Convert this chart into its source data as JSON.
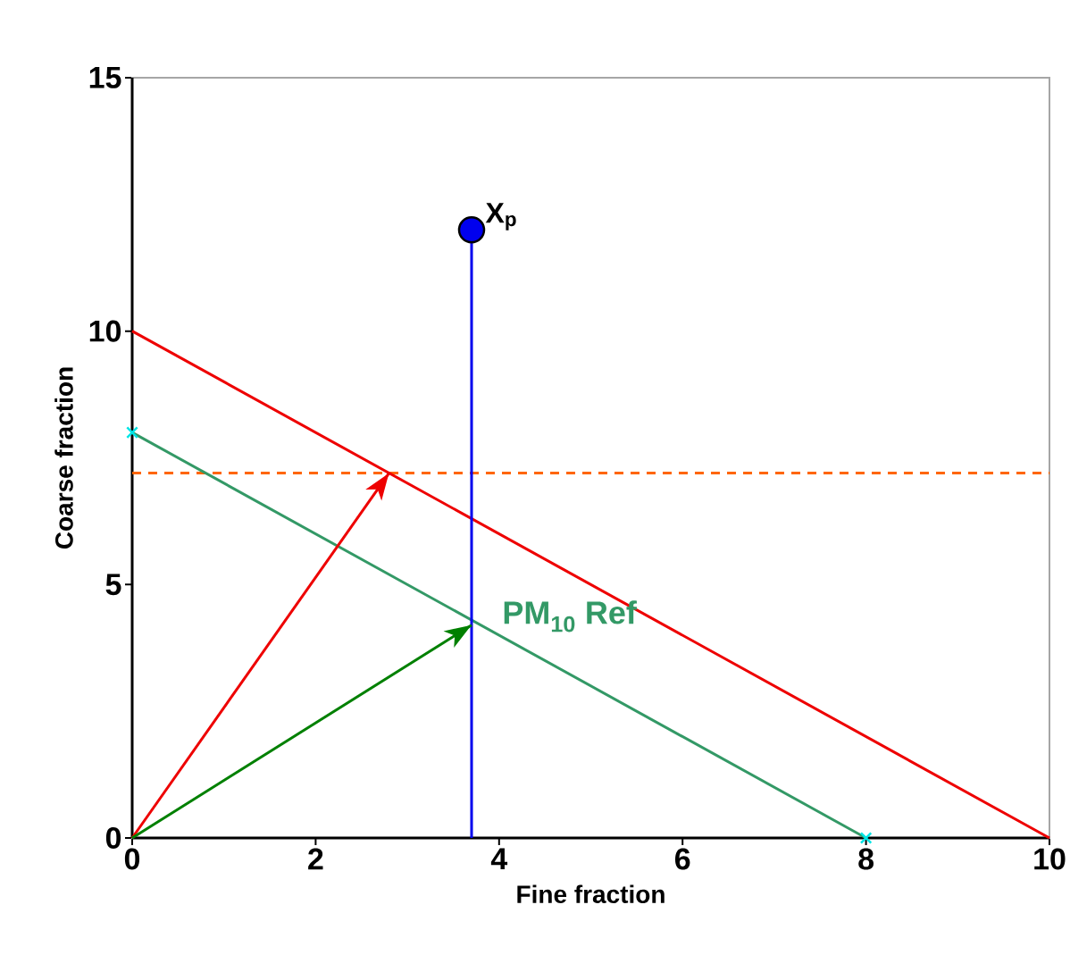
{
  "chart_data": {
    "type": "line",
    "xlabel": "Fine fraction",
    "ylabel": "Coarse fraction",
    "xlim": [
      0,
      10
    ],
    "ylim": [
      0,
      15
    ],
    "xticks": [
      0,
      2,
      4,
      6,
      8,
      10
    ],
    "yticks": [
      0,
      5,
      10,
      15
    ],
    "series": [
      {
        "color": "#ee0000",
        "x": [
          0,
          10
        ],
        "values": [
          10,
          0
        ]
      },
      {
        "name": "PM$_{10}$ Ref",
        "color": "#339966",
        "x": [
          0,
          8
        ],
        "values": [
          8,
          0
        ]
      },
      {
        "type": "scatter",
        "marker": "cross",
        "color": "#00e5e5",
        "x": [
          0,
          8
        ],
        "values": [
          8,
          0
        ]
      },
      {
        "color": "#0000ee",
        "x": [
          3.7,
          3.7
        ],
        "values": [
          0,
          12
        ]
      },
      {
        "color": "#ee0000",
        "x": [
          0,
          2.8
        ],
        "values": [
          0,
          7.2
        ]
      },
      {
        "color": "#008000",
        "x": [
          0,
          3.7
        ],
        "values": [
          0,
          4.2
        ]
      },
      {
        "type": "scatter",
        "marker": "circle",
        "color": "#0000ee",
        "x": [
          3.7
        ],
        "values": [
          12
        ]
      }
    ],
    "ref_lines": [
      {
        "axis": "y",
        "value": 7.2,
        "color": "#ff6600",
        "line_style": "dashed"
      }
    ],
    "annotations": [
      {
        "text": "X$_{p}$",
        "x": 3.7,
        "y": 12
      }
    ]
  }
}
